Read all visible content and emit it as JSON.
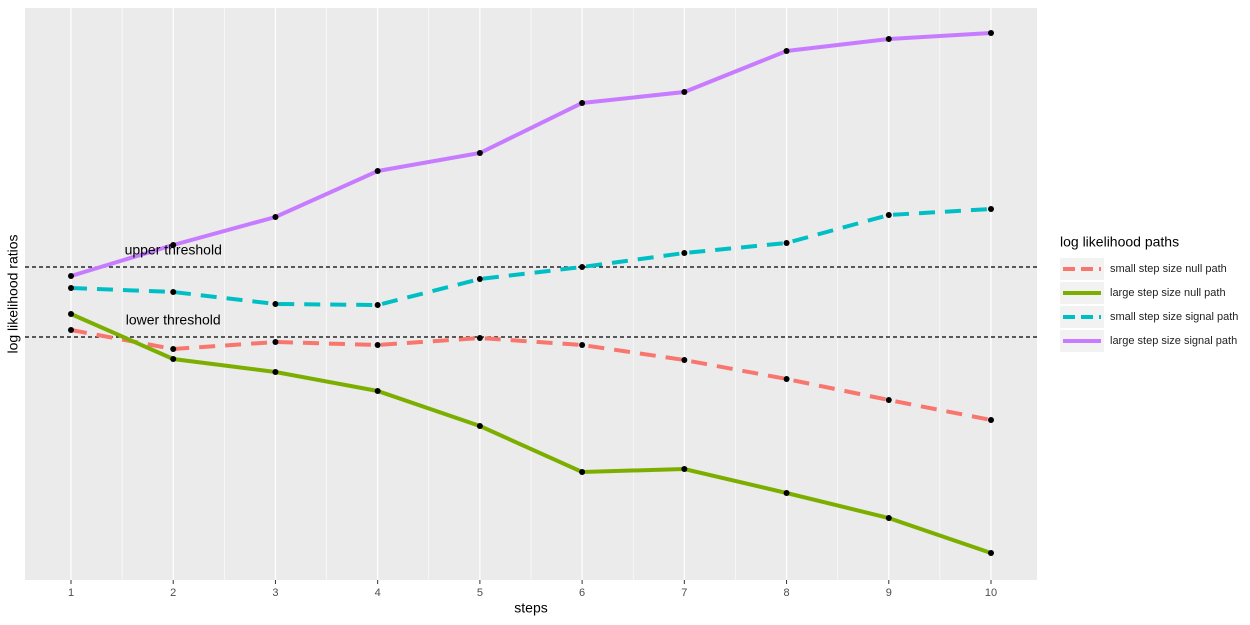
{
  "chart_data": {
    "type": "line",
    "xlabel": "steps",
    "ylabel": "log likelihood ratios",
    "x": [
      1,
      2,
      3,
      4,
      5,
      6,
      7,
      8,
      9,
      10
    ],
    "xlim": [
      0.55,
      10.45
    ],
    "xticks": [
      1,
      2,
      3,
      4,
      5,
      6,
      7,
      8,
      9,
      10
    ],
    "ylim": [
      0,
      572
    ],
    "grid": true,
    "legend_title": "log likelihood paths",
    "legend_position": "right",
    "series": [
      {
        "name": "small step size null path",
        "color": "#f8766d",
        "linetype": "dashed",
        "values": [
          250,
          231,
          238,
          235,
          242,
          235,
          220,
          201,
          180,
          160
        ]
      },
      {
        "name": "large step size null path",
        "color": "#7cae00",
        "linetype": "solid",
        "values": [
          266,
          221,
          208,
          189,
          154,
          108,
          111,
          87,
          62,
          27
        ]
      },
      {
        "name": "small step size signal path",
        "color": "#00bfc4",
        "linetype": "dashed",
        "values": [
          292,
          288,
          276,
          275,
          301,
          313,
          327,
          337,
          365,
          371
        ]
      },
      {
        "name": "large step size signal path",
        "color": "#c77cff",
        "linetype": "solid",
        "values": [
          304,
          335,
          363,
          409,
          427,
          477,
          488,
          529,
          541,
          547
        ]
      }
    ],
    "annotations": [
      {
        "text": "upper threshold",
        "x": 2,
        "y": 313
      },
      {
        "text": "lower threshold",
        "x": 2,
        "y": 243
      }
    ]
  }
}
